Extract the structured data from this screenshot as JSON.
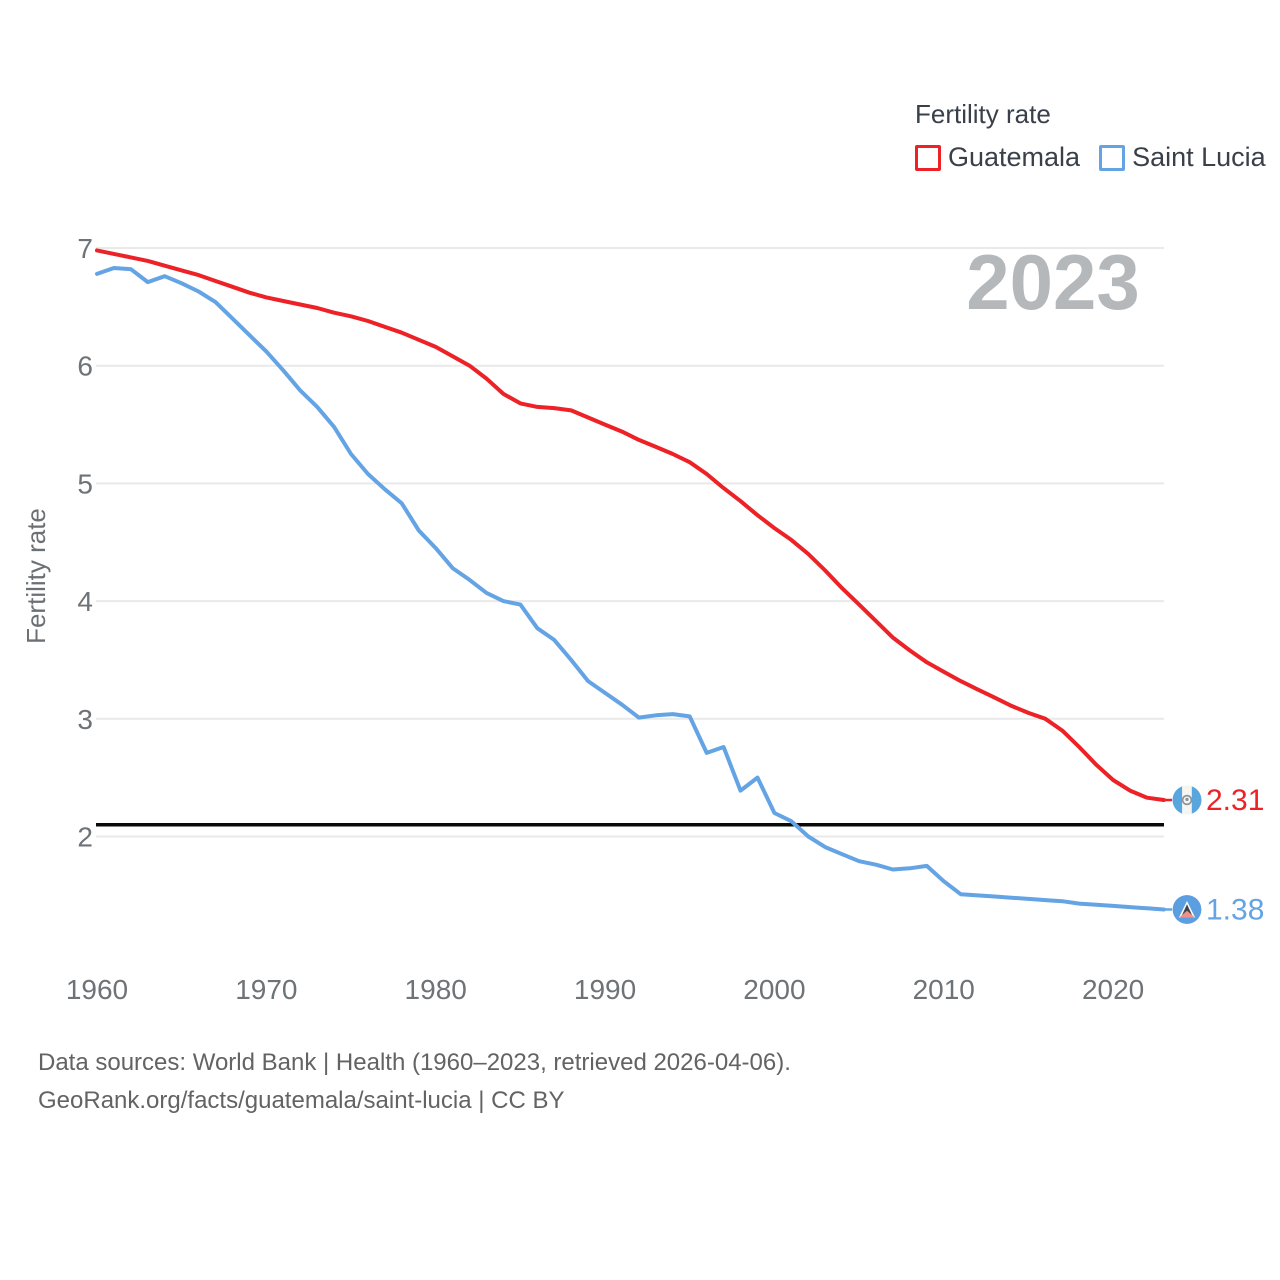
{
  "legend": {
    "title": "Fertility rate",
    "items": [
      {
        "label": "Guatemala",
        "color": "#ec2227"
      },
      {
        "label": "Saint Lucia",
        "color": "#64a3e4"
      }
    ]
  },
  "watermark": "2023",
  "axes": {
    "y_label": "Fertility rate",
    "y_ticks": [
      7,
      6,
      5,
      4,
      3,
      2
    ],
    "x_ticks": [
      1960,
      1970,
      1980,
      1990,
      2000,
      2010,
      2020
    ]
  },
  "reference_line": {
    "value": 2.1,
    "color": "#0a0a0a"
  },
  "end_labels": [
    {
      "value": "2.31",
      "color": "#ec2227",
      "flag": "guatemala-flag"
    },
    {
      "value": "1.38",
      "color": "#64a3e4",
      "flag": "saint-lucia-flag"
    }
  ],
  "footer": {
    "line1": "Data sources: World Bank | Health (1960–2023, retrieved 2026-04-06).",
    "line2": "GeoRank.org/facts/guatemala/saint-lucia | CC BY"
  },
  "chart_data": {
    "type": "line",
    "title": "Fertility rate",
    "xlabel": "",
    "ylabel": "Fertility rate",
    "legend_position": "top-right",
    "grid": true,
    "ylim": [
      1.2,
      7.05
    ],
    "xlim": [
      1960,
      2023
    ],
    "reference_line_y": 2.1,
    "year_watermark": "2023",
    "x": [
      1960,
      1961,
      1962,
      1963,
      1964,
      1965,
      1966,
      1967,
      1968,
      1969,
      1970,
      1971,
      1972,
      1973,
      1974,
      1975,
      1976,
      1977,
      1978,
      1979,
      1980,
      1981,
      1982,
      1983,
      1984,
      1985,
      1986,
      1987,
      1988,
      1989,
      1990,
      1991,
      1992,
      1993,
      1994,
      1995,
      1996,
      1997,
      1998,
      1999,
      2000,
      2001,
      2002,
      2003,
      2004,
      2005,
      2006,
      2007,
      2008,
      2009,
      2010,
      2011,
      2012,
      2013,
      2014,
      2015,
      2016,
      2017,
      2018,
      2019,
      2020,
      2021,
      2022,
      2023
    ],
    "series": [
      {
        "name": "Guatemala",
        "color": "#ec2227",
        "end_value": 2.31,
        "values": [
          6.98,
          6.95,
          6.92,
          6.89,
          6.85,
          6.81,
          6.77,
          6.72,
          6.67,
          6.62,
          6.58,
          6.55,
          6.52,
          6.49,
          6.45,
          6.42,
          6.38,
          6.33,
          6.28,
          6.22,
          6.16,
          6.08,
          6.0,
          5.89,
          5.76,
          5.68,
          5.65,
          5.64,
          5.62,
          5.56,
          5.5,
          5.44,
          5.37,
          5.31,
          5.25,
          5.18,
          5.08,
          4.96,
          4.85,
          4.73,
          4.62,
          4.52,
          4.4,
          4.26,
          4.11,
          3.97,
          3.83,
          3.69,
          3.58,
          3.48,
          3.4,
          3.32,
          3.25,
          3.18,
          3.11,
          3.05,
          3.0,
          2.9,
          2.76,
          2.61,
          2.48,
          2.39,
          2.33,
          2.31
        ]
      },
      {
        "name": "Saint Lucia",
        "color": "#64a3e4",
        "end_value": 1.38,
        "values": [
          6.78,
          6.83,
          6.82,
          6.71,
          6.76,
          6.7,
          6.63,
          6.54,
          6.4,
          6.26,
          6.12,
          5.96,
          5.79,
          5.65,
          5.48,
          5.25,
          5.08,
          4.95,
          4.83,
          4.6,
          4.45,
          4.28,
          4.18,
          4.07,
          4.0,
          3.97,
          3.77,
          3.67,
          3.5,
          3.32,
          3.22,
          3.12,
          3.01,
          3.03,
          3.04,
          3.02,
          2.71,
          2.76,
          2.39,
          2.5,
          2.2,
          2.13,
          2.0,
          1.91,
          1.85,
          1.79,
          1.76,
          1.72,
          1.73,
          1.75,
          1.62,
          1.51,
          1.5,
          1.49,
          1.48,
          1.47,
          1.46,
          1.45,
          1.43,
          1.42,
          1.41,
          1.4,
          1.39,
          1.38
        ]
      }
    ]
  }
}
